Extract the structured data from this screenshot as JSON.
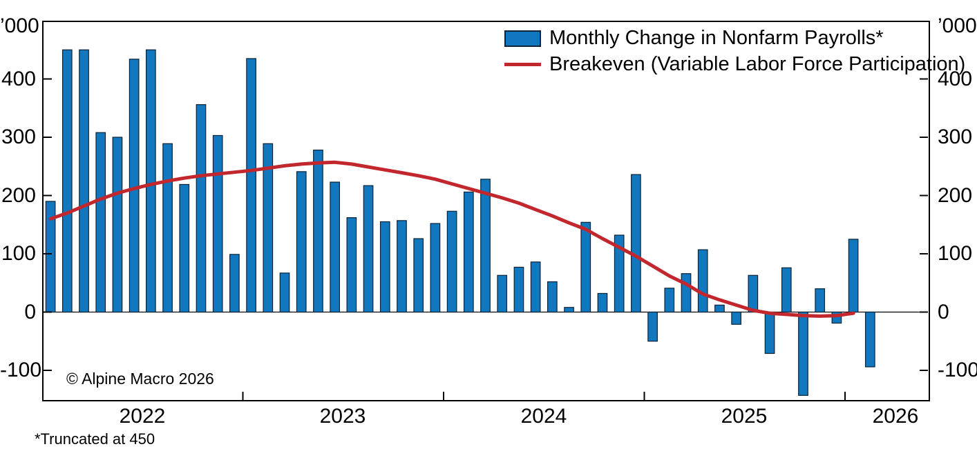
{
  "chart_data": {
    "type": "bar",
    "subtype": "bar+line combo, monthly time series",
    "title": "",
    "unit_label": "’000",
    "bar_series": {
      "name": "Monthly Change in Nonfarm Payrolls*",
      "truncated_at": 450,
      "truncated_months": [
        "2022-02",
        "2022-03",
        "2022-07"
      ],
      "values": {
        "2022": [
          190,
          450,
          450,
          308,
          300,
          434,
          450,
          289,
          219,
          356,
          303,
          99
        ],
        "2023": [
          435,
          289,
          67,
          241,
          278,
          223,
          162,
          217,
          155,
          157,
          126,
          152
        ],
        "2024": [
          173,
          206,
          228,
          63,
          77,
          86,
          52,
          8,
          154,
          32,
          132,
          236
        ],
        "2025": [
          -50,
          41,
          66,
          107,
          12,
          -21,
          63,
          -71,
          76,
          -143,
          40,
          -19
        ],
        "2026": [
          125,
          -94
        ]
      }
    },
    "line_series": {
      "name": "Breakeven (Variable Labor Force Participation)",
      "values": {
        "2022": [
          160,
          170,
          182,
          194,
          204,
          212,
          219,
          225,
          230,
          234,
          237,
          240
        ],
        "2023": [
          243,
          247,
          251,
          254,
          256,
          257,
          254,
          249,
          244,
          239,
          234,
          228
        ],
        "2024": [
          220,
          212,
          204,
          196,
          187,
          176,
          165,
          153,
          142,
          126,
          111,
          96
        ],
        "2025": [
          79,
          62,
          48,
          31,
          21,
          12,
          3,
          -2,
          -4,
          -6,
          -7,
          -6
        ],
        "2026": [
          -2
        ]
      }
    },
    "y_axis": {
      "unit_label": "’000",
      "ticks": [
        400,
        300,
        200,
        100,
        0,
        -100
      ],
      "ylim": [
        -152,
        495
      ],
      "grid": false,
      "mirrored_right_axis": true
    },
    "x_axis": {
      "year_labels": [
        "2022",
        "2023",
        "2024",
        "2025",
        "2026"
      ],
      "tick_style": "year boundary ticks, inward"
    },
    "legend": {
      "position": "top-right-inside",
      "items": [
        {
          "swatch": "bar",
          "label": "Monthly Change in Nonfarm Payrolls*"
        },
        {
          "swatch": "line",
          "label": "Breakeven (Variable Labor Force Participation)"
        }
      ]
    },
    "annotations": {
      "copyright": "© Alpine Macro 2026",
      "footnote": "*Truncated at 450"
    },
    "colors": {
      "bar_fill": "#1178BF",
      "bar_edge": "#0D2235",
      "line": "#C1272D",
      "axis": "#000000",
      "background": "#FFFFFF"
    }
  }
}
